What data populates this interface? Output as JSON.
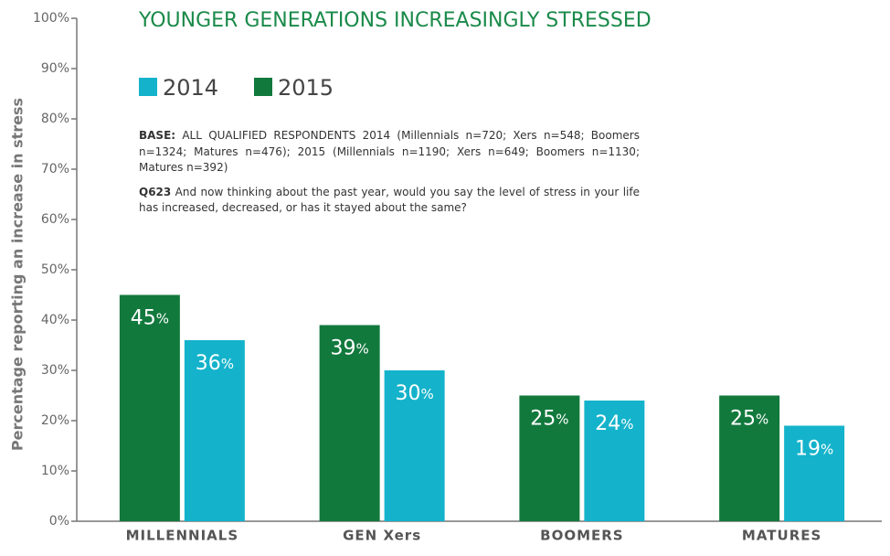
{
  "chart_data": {
    "type": "bar",
    "title": "YOUNGER GENERATIONS INCREASINGLY STRESSED",
    "y_label": "Percentage reporting an increase in stress",
    "categories": [
      "MILLENNIALS",
      "GEN Xers",
      "BOOMERS",
      "MATURES"
    ],
    "series": [
      {
        "name": "2014",
        "color": "#14b3cb",
        "values": [
          36,
          30,
          24,
          19
        ],
        "value_labels": [
          "36%",
          "30%",
          "24%",
          "19%"
        ]
      },
      {
        "name": "2015",
        "color": "#12793d",
        "values": [
          45,
          39,
          25,
          25
        ],
        "value_labels": [
          "45%",
          "39%",
          "25%",
          "25%"
        ]
      }
    ],
    "ylim": [
      0,
      100
    ],
    "yticks": [
      {
        "value": 0,
        "label": "0%"
      },
      {
        "value": 10,
        "label": "10%"
      },
      {
        "value": 20,
        "label": "20%"
      },
      {
        "value": 30,
        "label": "30%"
      },
      {
        "value": 40,
        "label": "40%"
      },
      {
        "value": 50,
        "label": "50%"
      },
      {
        "value": 60,
        "label": "60%"
      },
      {
        "value": 70,
        "label": "70%"
      },
      {
        "value": 80,
        "label": "80%"
      },
      {
        "value": 90,
        "label": "90%"
      },
      {
        "value": 100,
        "label": "100%"
      }
    ],
    "notes": [
      {
        "label": "BASE:",
        "text": "ALL QUALIFIED RESPONDENTS 2014 (Millennials n=720; Xers n=548; Boomers n=1324; Matures n=476); 2015 (Millennials n=1190; Xers n=649; Boomers n=1130; Matures n=392)"
      },
      {
        "label": "Q623",
        "text": "And now thinking about the past year, would you say the level of stress in your life has increased, decreased, or has it stayed about the same?"
      }
    ]
  }
}
